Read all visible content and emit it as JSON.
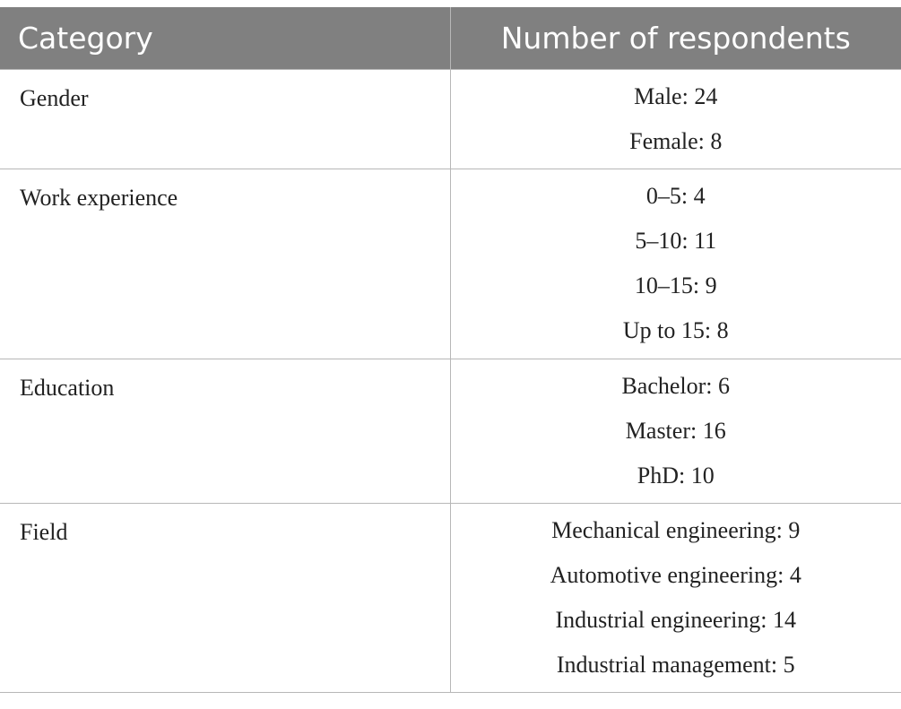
{
  "table": {
    "headers": [
      "Category",
      "Number of respondents"
    ],
    "rows": [
      {
        "category": "Gender",
        "values": [
          "Male: 24",
          "Female: 8"
        ]
      },
      {
        "category": "Work experience",
        "values": [
          "0–5: 4",
          "5–10: 11",
          "10–15: 9",
          "Up to 15: 8"
        ]
      },
      {
        "category": "Education",
        "values": [
          "Bachelor: 6",
          "Master: 16",
          "PhD: 10"
        ]
      },
      {
        "category": "Field",
        "values": [
          "Mechanical engineering: 9",
          "Automotive engineering: 4",
          "Industrial engineering: 14",
          "Industrial management: 5"
        ]
      }
    ]
  },
  "colors": {
    "header_bg": "#808080",
    "header_text": "#ffffff",
    "border": "#b7b7b7",
    "body_text": "#222222"
  }
}
